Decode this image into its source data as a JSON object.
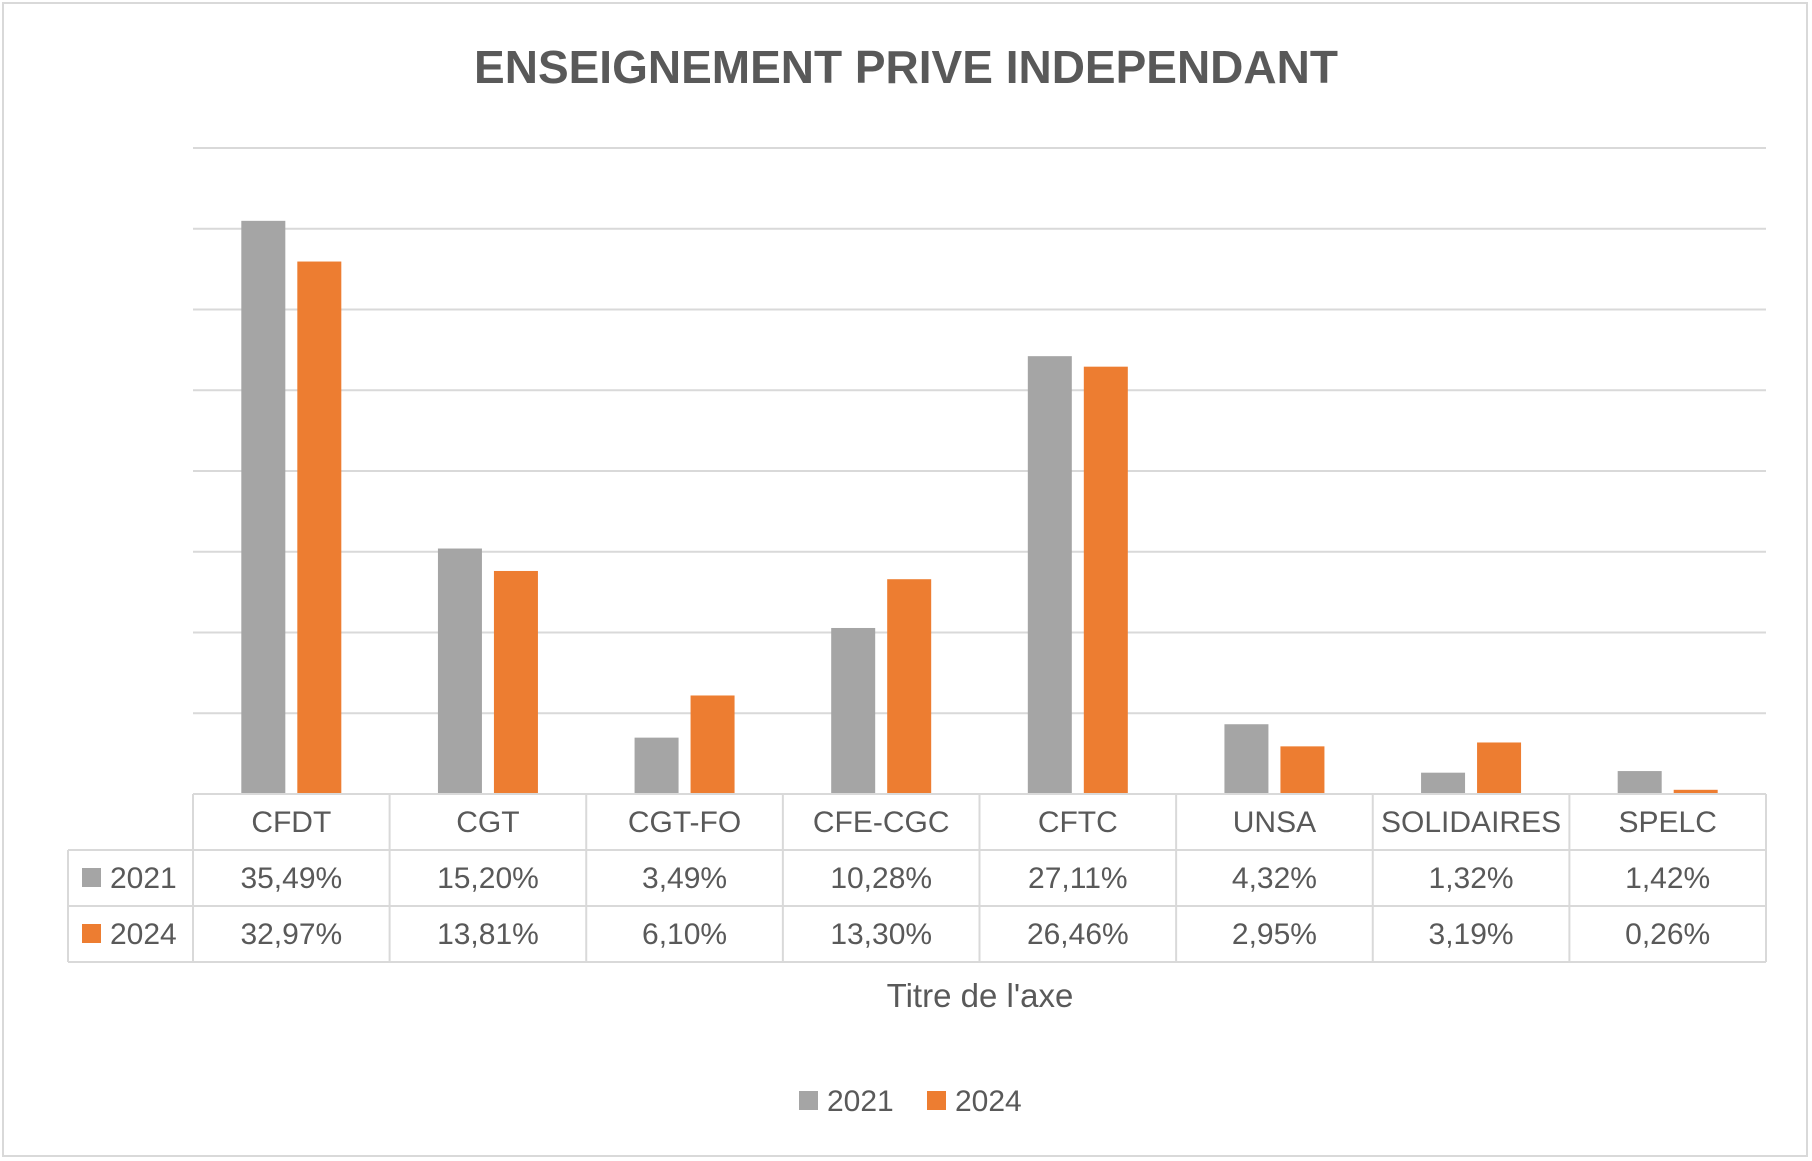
{
  "chart_data": {
    "type": "bar",
    "title": "ENSEIGNEMENT PRIVE INDEPENDANT",
    "xlabel": "Titre de l'axe",
    "ylabel": "",
    "ylim": [
      0,
      40
    ],
    "grid": true,
    "legend_position": "bottom",
    "categories": [
      "CFDT",
      "CGT",
      "CGT-FO",
      "CFE-CGC",
      "CFTC",
      "UNSA",
      "SOLIDAIRES",
      "SPELC"
    ],
    "series": [
      {
        "name": "2021",
        "color": "#a5a5a5",
        "values": [
          35.49,
          15.2,
          3.49,
          10.28,
          27.11,
          4.32,
          1.32,
          1.42
        ],
        "labels": [
          "35,49%",
          "15,20%",
          "3,49%",
          "10,28%",
          "27,11%",
          "4,32%",
          "1,32%",
          "1,42%"
        ]
      },
      {
        "name": "2024",
        "color": "#ed7d31",
        "values": [
          32.97,
          13.81,
          6.1,
          13.3,
          26.46,
          2.95,
          3.19,
          0.26
        ],
        "labels": [
          "32,97%",
          "13,81%",
          "6,10%",
          "13,30%",
          "26,46%",
          "2,95%",
          "3,19%",
          "0,26%"
        ]
      }
    ]
  }
}
